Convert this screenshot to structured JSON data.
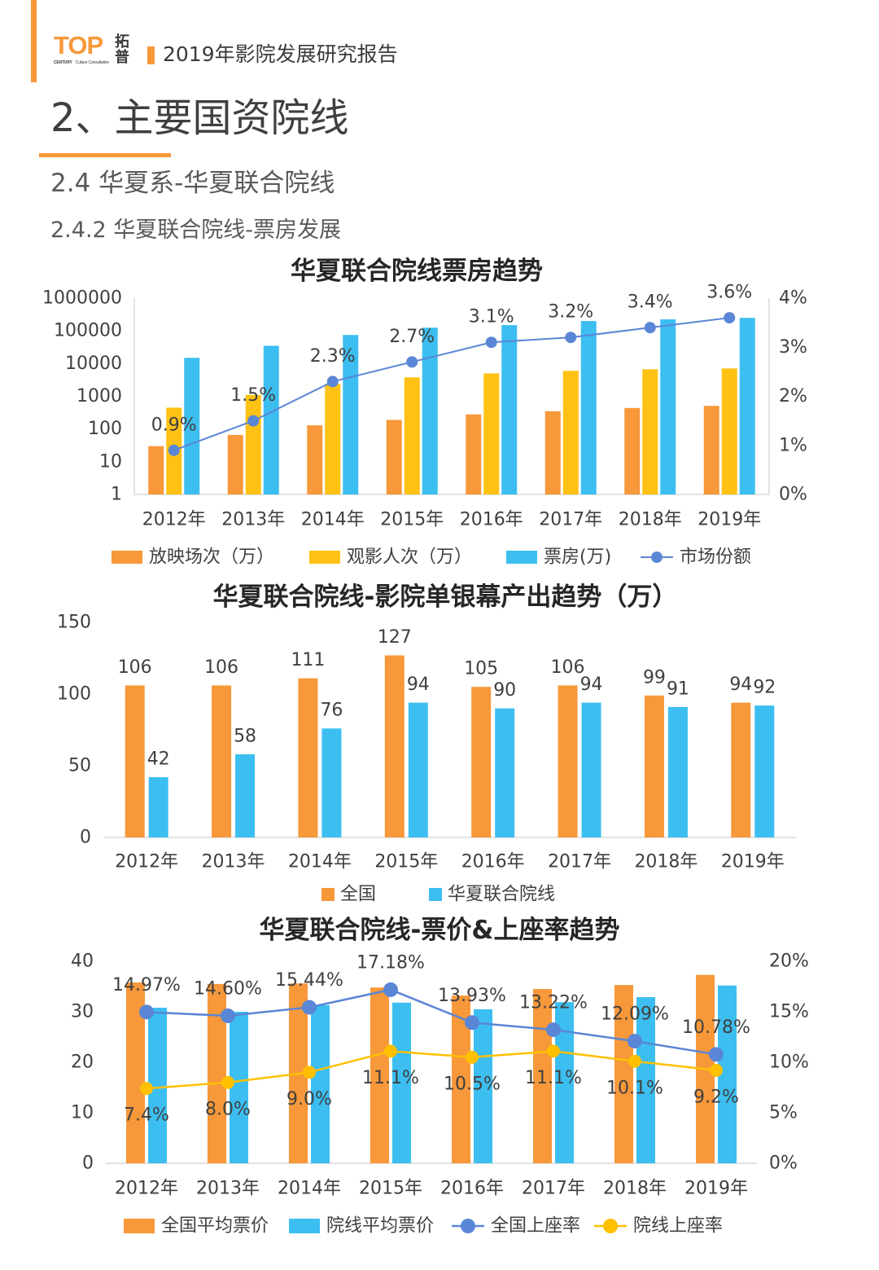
{
  "header": {
    "logo_text": "TOP",
    "logo_cn": [
      "拓",
      "普"
    ],
    "logo_sub_1": "CENTURY",
    "logo_sub_2": "Culture Consultation",
    "report_title": "2019年影院发展研究报告"
  },
  "section": {
    "title": "2、主要国资院线",
    "subtitle": "2.4 华夏系-华夏联合院线",
    "sub_subtitle": "2.4.2 华夏联合院线-票房发展"
  },
  "colors": {
    "accent": "#F7983A",
    "text": "#404040",
    "axis": "#D9D9D9"
  },
  "chart_data": [
    {
      "type": "bar",
      "title": "华夏联合院线票房趋势",
      "categories": [
        "2012年",
        "2013年",
        "2014年",
        "2015年",
        "2016年",
        "2017年",
        "2018年",
        "2019年"
      ],
      "y_scale": "log",
      "ylim": [
        1,
        1000000
      ],
      "y_ticks": [
        1,
        10,
        100,
        1000,
        10000,
        100000,
        1000000
      ],
      "y2lim": [
        0,
        4
      ],
      "y2_ticks": [
        0,
        1,
        2,
        3,
        4
      ],
      "y2_tick_labels": [
        "0%",
        "1%",
        "2%",
        "3%",
        "4%"
      ],
      "grid": false,
      "legend": "bottom",
      "series": [
        {
          "name": "放映场次（万）",
          "type": "bar",
          "axis": "left",
          "color": "#F7983A",
          "values": [
            30,
            66,
            130,
            190,
            280,
            350,
            440,
            510
          ]
        },
        {
          "name": "观影人次（万）",
          "type": "bar",
          "axis": "left",
          "color": "#FFC214",
          "values": [
            450,
            1100,
            2400,
            3800,
            5000,
            6000,
            6700,
            7100
          ]
        },
        {
          "name": "票房(万)",
          "type": "bar",
          "axis": "left",
          "color": "#3CBEF0",
          "values": [
            15000,
            35000,
            75000,
            125000,
            150000,
            200000,
            225000,
            250000
          ]
        },
        {
          "name": "市场份额",
          "type": "line",
          "axis": "right",
          "color": "#5A86D6",
          "values": [
            0.9,
            1.5,
            2.3,
            2.7,
            3.1,
            3.2,
            3.4,
            3.6
          ],
          "labels": [
            "0.9%",
            "1.5%",
            "2.3%",
            "2.7%",
            "3.1%",
            "3.2%",
            "3.4%",
            "3.6%"
          ]
        }
      ]
    },
    {
      "type": "bar",
      "title": "华夏联合院线-影院单银幕产出趋势（万）",
      "categories": [
        "2012年",
        "2013年",
        "2014年",
        "2015年",
        "2016年",
        "2017年",
        "2018年",
        "2019年"
      ],
      "ylim": [
        0,
        150
      ],
      "y_ticks": [
        0,
        50,
        100,
        150
      ],
      "grid": false,
      "legend": "bottom",
      "data_labels": true,
      "series": [
        {
          "name": "全国",
          "type": "bar",
          "color": "#F7983A",
          "values": [
            106,
            106,
            111,
            127,
            105,
            106,
            99,
            94
          ]
        },
        {
          "name": "华夏联合院线",
          "type": "bar",
          "color": "#3CBEF0",
          "values": [
            42,
            58,
            76,
            94,
            90,
            94,
            91,
            92
          ]
        }
      ]
    },
    {
      "type": "bar",
      "title": "华夏联合院线-票价&上座率趋势",
      "categories": [
        "2012年",
        "2013年",
        "2014年",
        "2015年",
        "2016年",
        "2017年",
        "2018年",
        "2019年"
      ],
      "ylim": [
        0,
        40
      ],
      "y_ticks": [
        0,
        10,
        20,
        30,
        40
      ],
      "y2lim": [
        0,
        20
      ],
      "y2_ticks": [
        0,
        5,
        10,
        15,
        20
      ],
      "y2_tick_labels": [
        "0%",
        "5%",
        "10%",
        "15%",
        "20%"
      ],
      "grid": false,
      "legend": "bottom",
      "series": [
        {
          "name": "全国平均票价",
          "type": "bar",
          "axis": "left",
          "color": "#F7983A",
          "values": [
            35.8,
            35.5,
            35.6,
            34.8,
            33.2,
            34.5,
            35.3,
            37.3
          ]
        },
        {
          "name": "院线平均票价",
          "type": "bar",
          "axis": "left",
          "color": "#3CBEF0",
          "values": [
            30.8,
            30.0,
            31.3,
            31.8,
            30.5,
            31.9,
            32.9,
            35.2
          ]
        },
        {
          "name": "全国上座率",
          "type": "line",
          "axis": "right",
          "color": "#5A86D6",
          "values": [
            14.97,
            14.6,
            15.44,
            17.18,
            13.93,
            13.22,
            12.09,
            10.78
          ],
          "labels": [
            "14.97%",
            "14.60%",
            "15.44%",
            "17.18%",
            "13.93%",
            "13.22%",
            "12.09%",
            "10.78%"
          ]
        },
        {
          "name": "院线上座率",
          "type": "line",
          "axis": "right",
          "color": "#FFC000",
          "values": [
            7.4,
            8.0,
            9.0,
            11.1,
            10.5,
            11.1,
            10.1,
            9.2
          ],
          "labels": [
            "7.4%",
            "8.0%",
            "9.0%",
            "11.1%",
            "10.5%",
            "11.1%",
            "10.1%",
            "9.2%"
          ]
        }
      ]
    }
  ]
}
